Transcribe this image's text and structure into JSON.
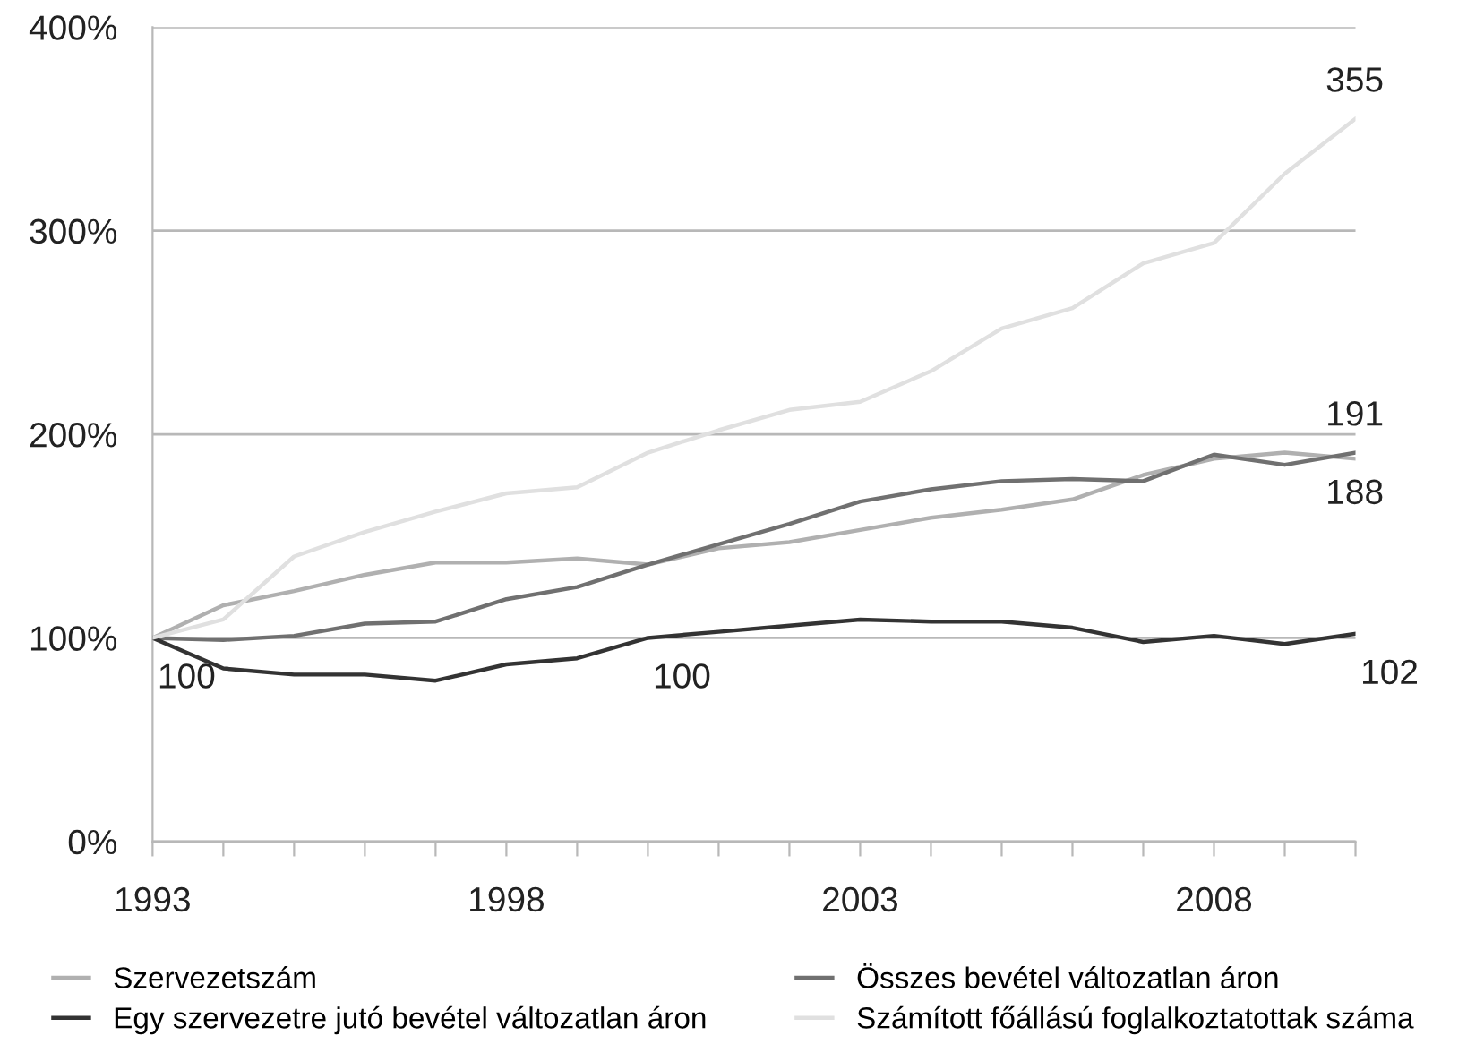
{
  "chart_data": {
    "type": "line",
    "x": [
      1993,
      1994,
      1995,
      1996,
      1997,
      1998,
      1999,
      2000,
      2001,
      2002,
      2003,
      2004,
      2005,
      2006,
      2007,
      2008,
      2009,
      2010
    ],
    "series": [
      {
        "name": "Szervezetszám",
        "color": "#b0b0b0",
        "values": [
          100,
          116,
          123,
          131,
          137,
          137,
          139,
          136,
          144,
          147,
          153,
          159,
          163,
          168,
          180,
          188,
          191,
          188
        ]
      },
      {
        "name": "Összes bevétel változatlan áron",
        "color": "#707070",
        "values": [
          100,
          99,
          101,
          107,
          108,
          119,
          125,
          136,
          146,
          156,
          167,
          173,
          177,
          178,
          177,
          190,
          185,
          191
        ]
      },
      {
        "name": "Egy szervezetre jutó bevétel változatlan áron",
        "color": "#333333",
        "values": [
          100,
          85,
          82,
          82,
          79,
          87,
          90,
          100,
          103,
          106,
          109,
          108,
          108,
          105,
          98,
          101,
          97,
          102
        ]
      },
      {
        "name": "Számított főállású foglalkoztatottak száma",
        "color": "#e0e0e0",
        "values": [
          100,
          109,
          140,
          152,
          162,
          171,
          174,
          191,
          202,
          212,
          216,
          231,
          252,
          262,
          284,
          294,
          328,
          355
        ]
      }
    ],
    "xlim": [
      1993,
      2010
    ],
    "xticks": [
      1993,
      {
        "value": 1994,
        "label": null
      },
      {
        "value": 1995,
        "label": null
      },
      {
        "value": 1996,
        "label": null
      },
      {
        "value": 1997,
        "label": null
      },
      1998,
      {
        "value": 1999,
        "label": null
      },
      {
        "value": 2000,
        "label": null
      },
      {
        "value": 2001,
        "label": null
      },
      {
        "value": 2002,
        "label": null
      },
      2003,
      {
        "value": 2004,
        "label": null
      },
      {
        "value": 2005,
        "label": null
      },
      {
        "value": 2006,
        "label": null
      },
      {
        "value": 2007,
        "label": null
      },
      2008,
      {
        "value": 2009,
        "label": null
      },
      {
        "value": 2010,
        "label": null
      }
    ],
    "ylim": [
      0,
      400
    ],
    "yticks": [
      {
        "value": 0,
        "label": "0%"
      },
      {
        "value": 100,
        "label": "100%"
      },
      {
        "value": 200,
        "label": "200%"
      },
      {
        "value": 300,
        "label": "300%"
      },
      {
        "value": 400,
        "label": "400%"
      }
    ],
    "grid": "y",
    "legend": "bottom",
    "marker": "none",
    "line_style": "solid",
    "annotations": [
      {
        "text": "100",
        "x": 1993,
        "y": 100
      },
      {
        "text": "100",
        "x": 2000,
        "y": 100
      },
      {
        "text": "355",
        "x": 2010,
        "y": 355
      },
      {
        "text": "191",
        "x": 2010,
        "y": 191
      },
      {
        "text": "188",
        "x": 2010,
        "y": 188
      },
      {
        "text": "102",
        "x": 2010,
        "y": 102
      }
    ]
  }
}
